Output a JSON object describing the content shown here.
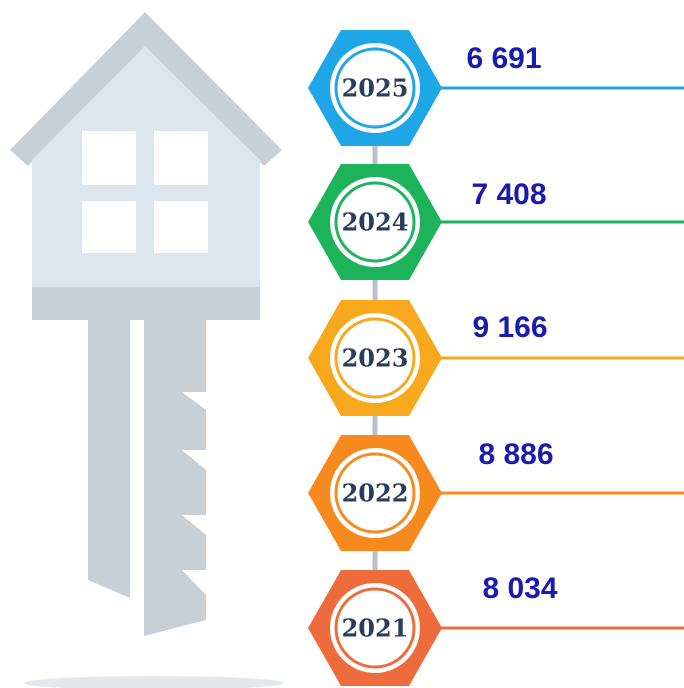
{
  "items": [
    {
      "year": "2025",
      "value": "6 691"
    },
    {
      "year": "2024",
      "value": "7 408"
    },
    {
      "year": "2023",
      "value": "9 166"
    },
    {
      "year": "2022",
      "value": "8 886"
    },
    {
      "year": "2021",
      "value": "8 034"
    }
  ]
}
